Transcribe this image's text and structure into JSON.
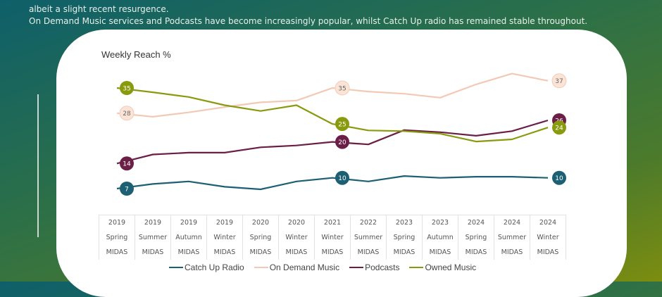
{
  "intro": {
    "line0": "...",
    "line1": "albeit a slight recent resurgence.",
    "line2": "On Demand Music services and Podcasts have become increasingly popular, whilst Catch Up radio has remained stable throughout."
  },
  "chart_data": {
    "type": "line",
    "title": "Weekly Reach %",
    "xlabel": "",
    "ylabel": "",
    "ylim": [
      0,
      45
    ],
    "grid": false,
    "legend_position": "bottom",
    "categories": [
      [
        "2019",
        "Spring",
        "MIDAS"
      ],
      [
        "2019",
        "Summer",
        "MIDAS"
      ],
      [
        "2019",
        "Autumn",
        "MIDAS"
      ],
      [
        "2019",
        "Winter",
        "MIDAS"
      ],
      [
        "2020",
        "Spring",
        "MIDAS"
      ],
      [
        "2020",
        "Winter",
        "MIDAS"
      ],
      [
        "2021",
        "Winter",
        "MIDAS"
      ],
      [
        "2022",
        "Summer",
        "MIDAS"
      ],
      [
        "2023",
        "Spring",
        "MIDAS"
      ],
      [
        "2023",
        "Autumn",
        "MIDAS"
      ],
      [
        "2024",
        "Spring",
        "MIDAS"
      ],
      [
        "2024",
        "Summer",
        "MIDAS"
      ],
      [
        "2024",
        "Winter",
        "MIDAS"
      ]
    ],
    "series": [
      {
        "name": "Catch Up Radio",
        "color": "#1d5f73",
        "label_text_color": "#ffffff",
        "values": [
          7,
          8.3,
          9,
          7.5,
          6.8,
          9,
          10,
          9,
          10.5,
          10,
          10.3,
          10.3,
          10
        ],
        "labeled_points": {
          "0": "7",
          "6": "10",
          "12": "10"
        }
      },
      {
        "name": "On Demand Music",
        "color": "#f3c9b5",
        "label_fill": "#fbe3d6",
        "label_text_color": "#666666",
        "values": [
          28,
          27,
          28.2,
          29.7,
          31,
          31.5,
          35,
          34,
          33.4,
          32.3,
          36,
          39,
          37
        ],
        "labeled_points": {
          "0": "28",
          "6": "35",
          "12": "37"
        }
      },
      {
        "name": "Podcasts",
        "color": "#6b1f47",
        "label_text_color": "#ffffff",
        "values": [
          14,
          16.5,
          17,
          17,
          18.5,
          19,
          20,
          19.3,
          23.3,
          22.7,
          21.7,
          23,
          26
        ],
        "labeled_points": {
          "0": "14",
          "6": "20",
          "12": "26"
        }
      },
      {
        "name": "Owned Music",
        "color": "#8a9a0e",
        "label_text_color": "#ffffff",
        "values": [
          35,
          33.8,
          32.5,
          30.2,
          28.6,
          30.2,
          25,
          23.2,
          23,
          22.3,
          20.1,
          20.7,
          24
        ],
        "labeled_points": {
          "0": "35",
          "6": "25",
          "12": "24"
        }
      }
    ]
  }
}
